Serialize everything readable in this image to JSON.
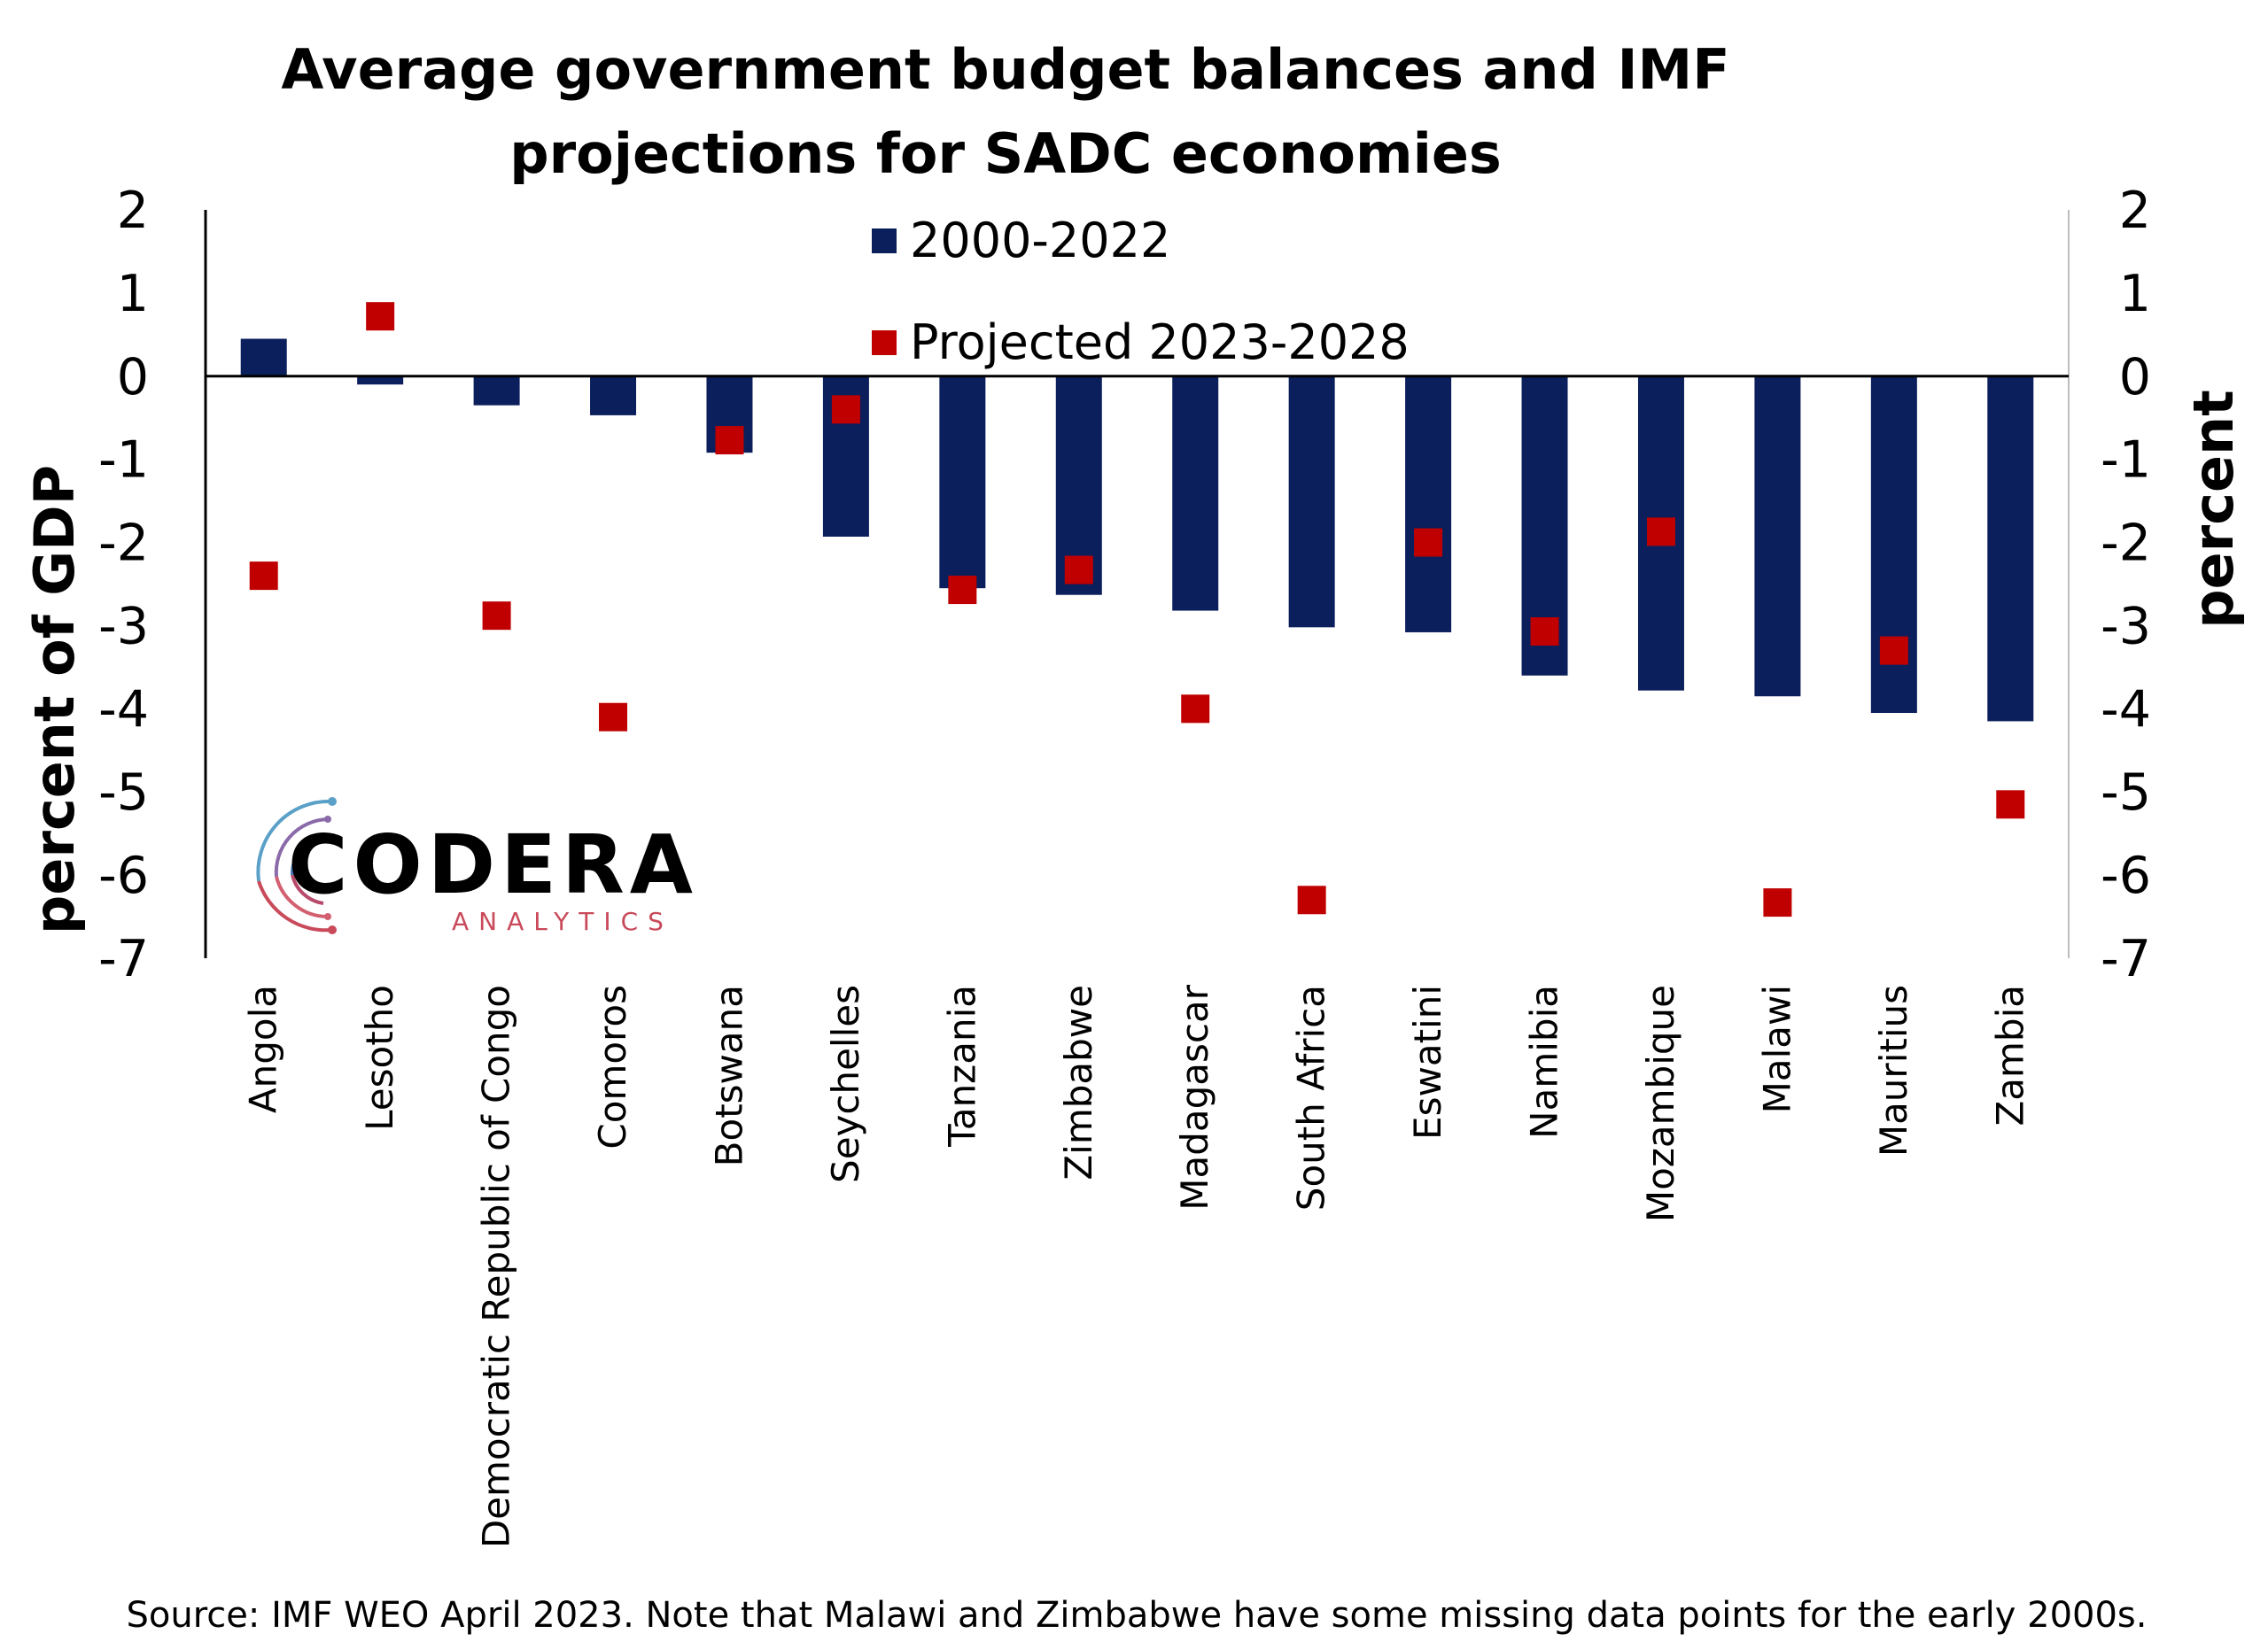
{
  "chart_data": {
    "type": "bar",
    "title_line1": "Average government budget balances and IMF",
    "title_line2": "projections for SADC economies",
    "ylabel_left": "percent of GDP",
    "ylabel_right": "percent",
    "ylim": [
      -7,
      2
    ],
    "yticks": [
      2,
      1,
      0,
      -1,
      -2,
      -3,
      -4,
      -5,
      -6,
      -7
    ],
    "legend_position": "top-center",
    "categories": [
      "Angola",
      "Lesotho",
      "Democratic Republic of Congo",
      "Comoros",
      "Botswana",
      "Seychelles",
      "Tanzania",
      "Zimbabwe",
      "Madagascar",
      "South Africa",
      "Eswatini",
      "Namibia",
      "Mozambique",
      "Malawi",
      "Mauritius",
      "Zambia"
    ],
    "series": [
      {
        "name": "2000-2022",
        "kind": "bar",
        "color": "#0b1f5c",
        "values": [
          0.45,
          -0.1,
          -0.35,
          -0.47,
          -0.92,
          -1.93,
          -2.55,
          -2.63,
          -2.82,
          -3.02,
          -3.08,
          -3.6,
          -3.78,
          -3.85,
          -4.05,
          -4.15
        ]
      },
      {
        "name": "Projected 2023-2028",
        "kind": "marker",
        "color": "#c00000",
        "values": [
          -2.4,
          0.72,
          -2.88,
          -4.1,
          -0.77,
          -0.4,
          -2.57,
          -2.33,
          -4.0,
          -6.3,
          -2.0,
          -3.07,
          -1.87,
          -6.33,
          -3.3,
          -5.15
        ]
      }
    ],
    "source": "Source: IMF WEO April 2023. Note that Malawi and Zimbabwe have some missing data points for the early 2000s."
  },
  "logo": {
    "name": "CODERA",
    "sub": "ANALYTICS"
  }
}
